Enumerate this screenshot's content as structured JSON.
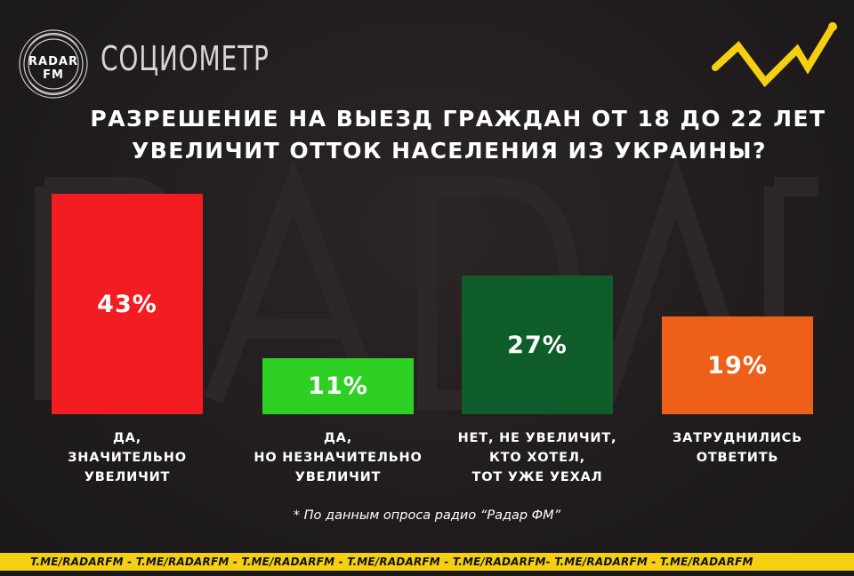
{
  "header": {
    "logo_text": "RADAR FM",
    "brand": "СОЦИОМЕТР"
  },
  "title": {
    "line1": "РАЗРЕШЕНИЕ НА ВЫЕЗД ГРАЖДАН ОТ 18 ДО 22 ЛЕТ",
    "line2": "УВЕЛИЧИТ ОТТОК НАСЕЛЕНИЯ ИЗ УКРАИНЫ?"
  },
  "chart_data": {
    "type": "bar",
    "categories": [
      "ДА,\nЗНАЧИТЕЛЬНО\nУВЕЛИЧИТ",
      "ДА,\nНО НЕЗНАЧИТЕЛЬНО\nУВЕЛИЧИТ",
      "НЕТ, НЕ УВЕЛИЧИТ,\nКТО ХОТЕЛ,\nТОТ УЖЕ УЕХАЛ",
      "ЗАТРУДНИЛИСЬ\nОТВЕТИТЬ"
    ],
    "values": [
      43,
      11,
      27,
      19
    ],
    "value_labels": [
      "43%",
      "11%",
      "27%",
      "19%"
    ],
    "colors": [
      "#f21c21",
      "#2fd024",
      "#0f5d2a",
      "#ee6019"
    ],
    "ylim": [
      0,
      43
    ],
    "grid": false,
    "legend": "none"
  },
  "footnote": "* По данным опроса радио “Радар ФМ”",
  "ticker": "T.ME/RADARFM    -   T.ME/RADARFM - T.ME/RADARFM - T.ME/RADARFM - T.ME/RADARFM- T.ME/RADARFM - T.ME/RADARFM",
  "colors": {
    "accent": "#f5d010",
    "background": "#211d1e"
  }
}
